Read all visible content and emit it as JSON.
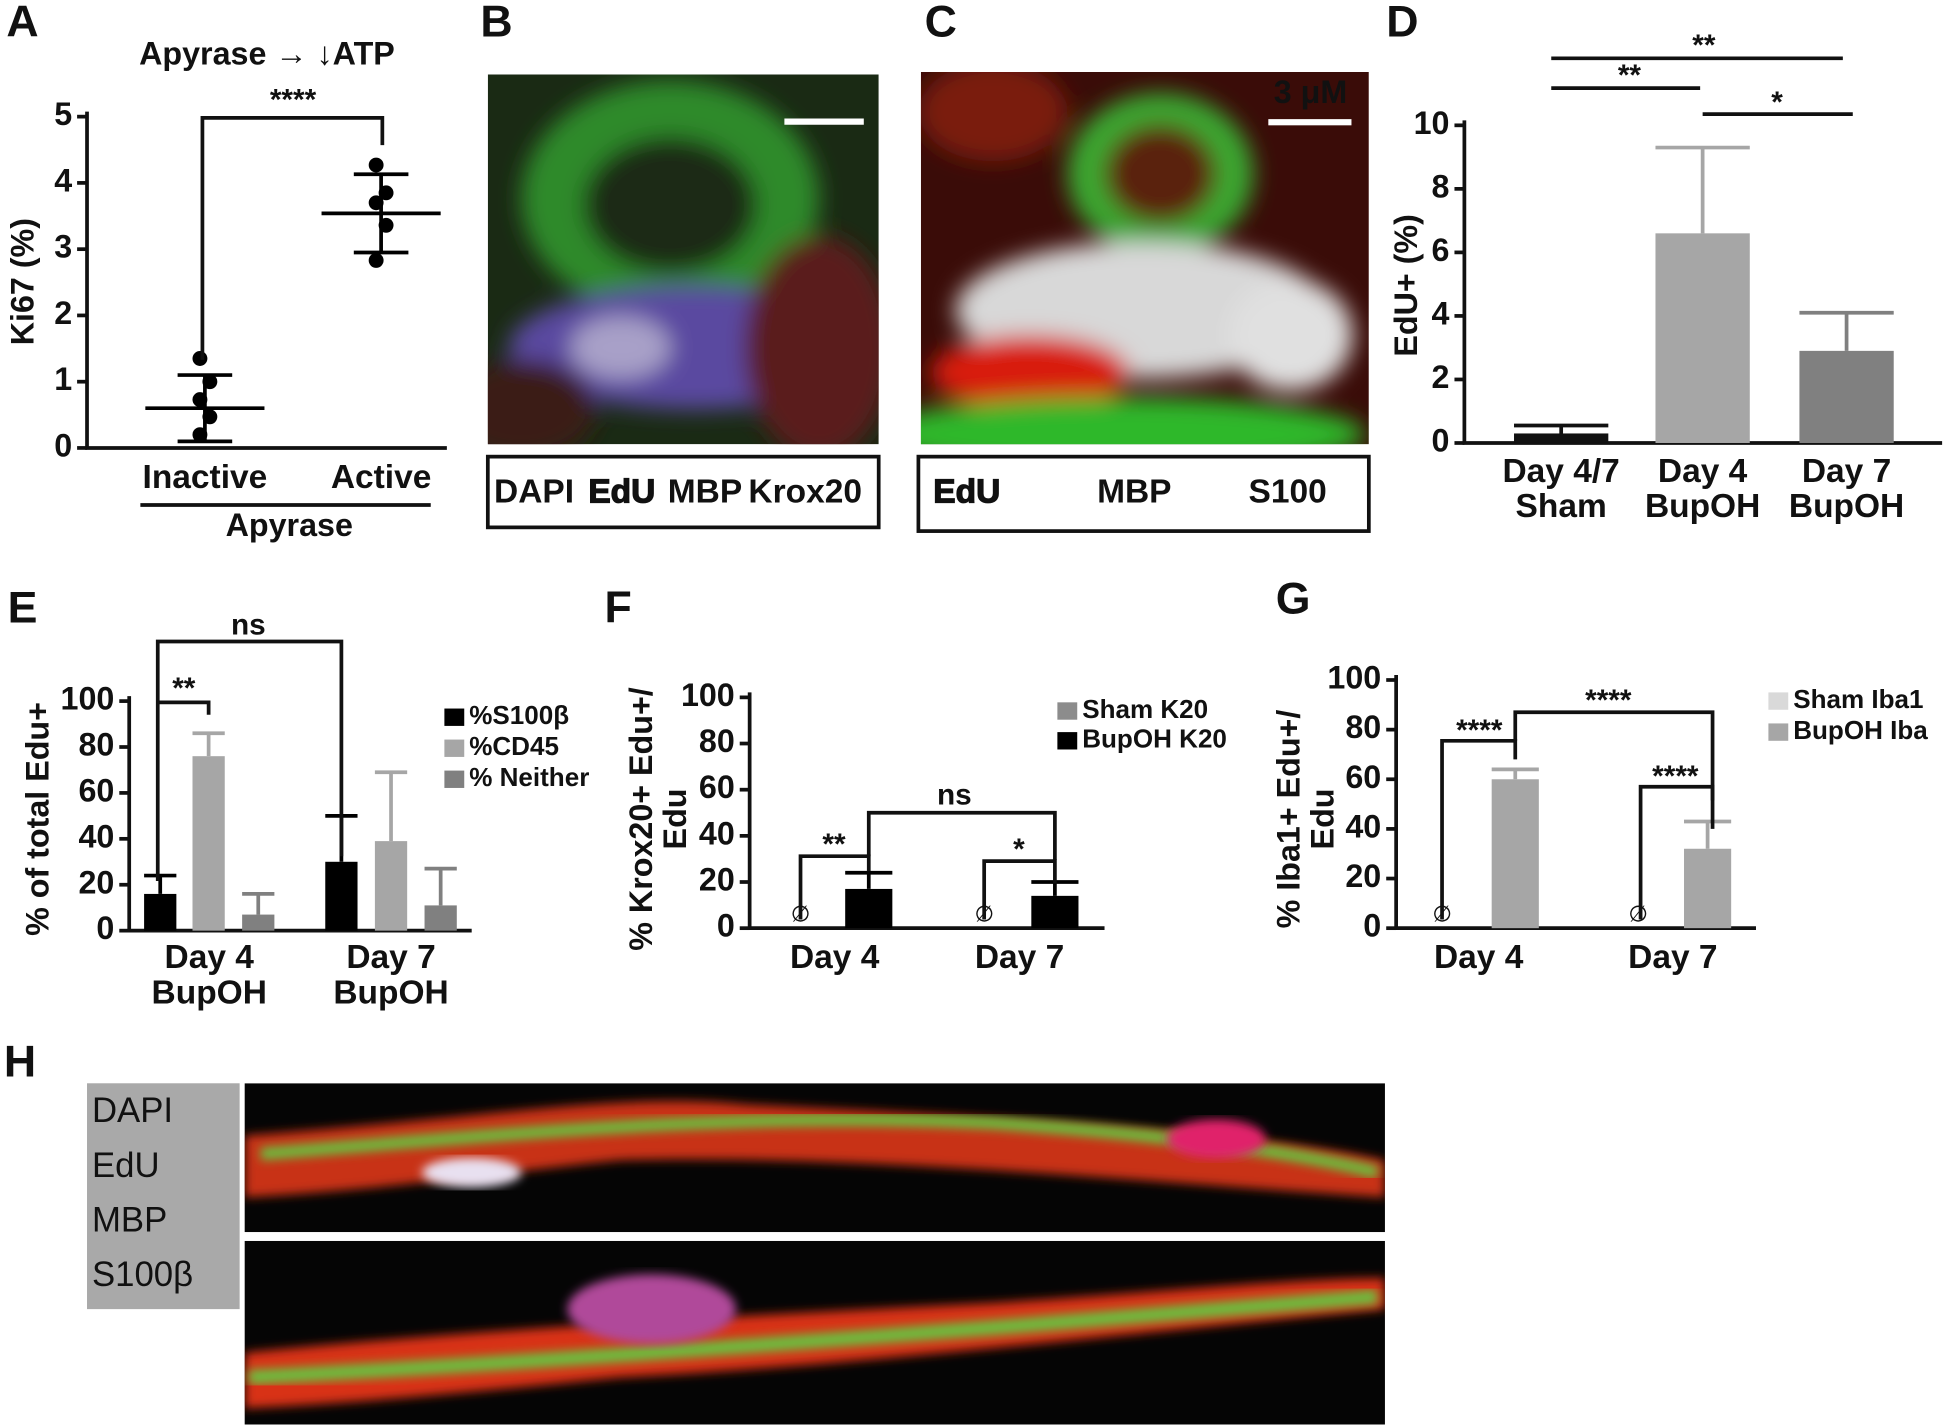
{
  "panel_letters": [
    "A",
    "B",
    "C",
    "D",
    "E",
    "F",
    "G",
    "H"
  ],
  "chart_data": [
    {
      "type": "scatter",
      "title": "Apyrase → ↓ATP",
      "ylabel": "Ki67 (%)",
      "categories": [
        "Inactive",
        "Active"
      ],
      "group_label": "Apyrase",
      "points": [
        [
          1.35,
          1.0,
          0.73,
          0.47,
          0.2
        ],
        [
          4.27,
          3.85,
          3.7,
          3.36,
          2.83
        ]
      ],
      "means": [
        0.6,
        3.54
      ],
      "sd": [
        0.5,
        0.59
      ],
      "color": "#000000",
      "ylim": [
        0,
        5
      ],
      "yticks": [
        0,
        1,
        2,
        3,
        4,
        5
      ],
      "annotations": [
        "****"
      ]
    },
    {
      "type": "bar",
      "ylabel": "EdU+ (%)",
      "categories": [
        "Day 4/7\nSham",
        "Day 4\nBupOH",
        "Day 7\nBupOH"
      ],
      "series": [
        {
          "values": [
            0.3,
            6.6,
            2.9
          ],
          "errors": [
            0.25,
            2.7,
            1.2
          ],
          "colors": [
            "#111111",
            "#a6a6a6",
            "#808080"
          ]
        }
      ],
      "ylim": [
        0,
        10
      ],
      "yticks": [
        0,
        2,
        4,
        6,
        8,
        10
      ],
      "annotations": [
        "**",
        "**",
        "*"
      ]
    },
    {
      "type": "bar",
      "ylabel": "% of total Edu+",
      "categories": [
        "Day 4\nBupOH",
        "Day 7\nBupOH"
      ],
      "series": [
        {
          "name": "%S100β",
          "color": "#000000",
          "values": [
            16,
            30
          ],
          "errors": [
            8,
            20
          ]
        },
        {
          "name": "%CD45",
          "color": "#a6a6a6",
          "values": [
            76,
            39
          ],
          "errors": [
            10,
            30
          ]
        },
        {
          "name": "% Neither",
          "color": "#808080",
          "values": [
            7,
            11
          ],
          "errors": [
            9,
            16
          ]
        }
      ],
      "ylim": [
        0,
        100
      ],
      "yticks": [
        0,
        20,
        40,
        60,
        80,
        100
      ],
      "annotations": [
        "**",
        "ns"
      ]
    },
    {
      "type": "bar",
      "ylabel": "% Krox20+ Edu+/\nEdu",
      "categories": [
        "Day 4",
        "Day 7"
      ],
      "series": [
        {
          "name": "Sham K20",
          "color": "#8c8c8c",
          "values": [
            0,
            0
          ],
          "value_labels": [
            "∅",
            "∅"
          ]
        },
        {
          "name": "BupOH K20",
          "color": "#000000",
          "values": [
            17,
            14
          ],
          "errors": [
            7,
            6
          ]
        }
      ],
      "ylim": [
        0,
        100
      ],
      "yticks": [
        0,
        20,
        40,
        60,
        80,
        100
      ],
      "annotations": [
        "**",
        "ns",
        "*"
      ]
    },
    {
      "type": "bar",
      "ylabel": "% Iba1+ Edu+/\nEdu",
      "categories": [
        "Day 4",
        "Day 7"
      ],
      "series": [
        {
          "name": "Sham Iba1",
          "color": "#d9d9d9",
          "values": [
            0,
            0
          ],
          "value_labels": [
            "∅",
            "∅"
          ]
        },
        {
          "name": "BupOH Iba",
          "color": "#a6a6a6",
          "values": [
            60,
            32
          ],
          "errors": [
            4,
            11
          ]
        }
      ],
      "ylim": [
        0,
        100
      ],
      "yticks": [
        0,
        20,
        40,
        60,
        80,
        100
      ],
      "annotations": [
        "****",
        "****",
        "****"
      ]
    }
  ],
  "images": {
    "B": {
      "legend": [
        "DAPI",
        "EdU",
        "MBP",
        "Krox20"
      ]
    },
    "C": {
      "legend": [
        "EdU",
        "MBP",
        "S100"
      ],
      "scale_bar": "3 μM"
    },
    "H": {
      "legend": [
        "DAPI",
        "EdU",
        "MBP",
        "S100β"
      ]
    }
  }
}
